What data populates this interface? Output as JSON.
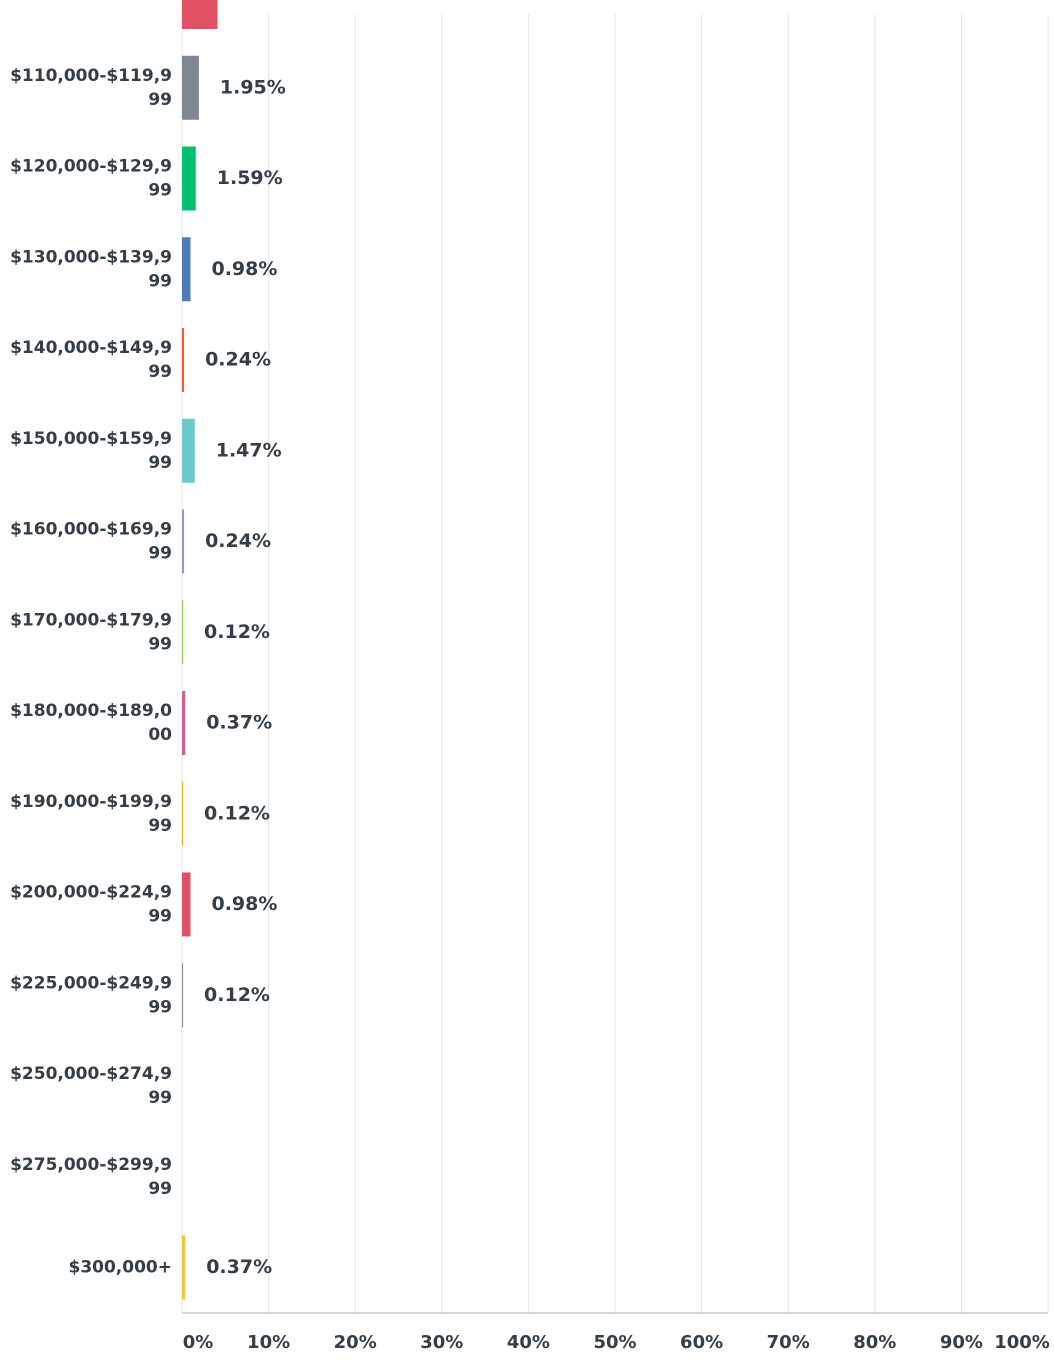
{
  "chart_data": {
    "type": "bar",
    "orientation": "horizontal",
    "categories": [
      null,
      "$110,000-$119,999",
      "$120,000-$129,999",
      "$130,000-$139,999",
      "$140,000-$149,999",
      "$150,000-$159,999",
      "$160,000-$169,999",
      "$170,000-$179,999",
      "$180,000-$189,000",
      "$190,000-$199,999",
      "$200,000-$224,999",
      "$225,000-$249,999",
      "$250,000-$274,999",
      "$275,000-$299,999",
      "$300,000+"
    ],
    "values": [
      4.1,
      1.95,
      1.59,
      0.98,
      0.24,
      1.47,
      0.24,
      0.12,
      0.37,
      0.12,
      0.98,
      0.12,
      0,
      0,
      0.37
    ],
    "value_labels": [
      null,
      "1.95%",
      "1.59%",
      "0.98%",
      "0.24%",
      "1.47%",
      "0.24%",
      "0.12%",
      "0.37%",
      "0.12%",
      "0.98%",
      "0.12%",
      null,
      null,
      "0.37%"
    ],
    "colors": [
      "#e05263",
      "#7f8790",
      "#00bf6f",
      "#507cb6",
      "#f05b24",
      "#6bc8cd",
      "#a18fcc",
      "#95c84a",
      "#d25f90",
      "#f5a623",
      "#e05263",
      "#7f8790",
      "#00bf6f",
      "#507cb6",
      "#f5c342"
    ],
    "xlim": [
      0,
      100
    ],
    "xticks": [
      {
        "value": 0,
        "label": "0%"
      },
      {
        "value": 10,
        "label": "10%"
      },
      {
        "value": 20,
        "label": "20%"
      },
      {
        "value": 30,
        "label": "30%"
      },
      {
        "value": 40,
        "label": "40%"
      },
      {
        "value": 50,
        "label": "50%"
      },
      {
        "value": 60,
        "label": "60%"
      },
      {
        "value": 70,
        "label": "70%"
      },
      {
        "value": 80,
        "label": "80%"
      },
      {
        "value": 90,
        "label": "90%"
      },
      {
        "value": 100,
        "label": "100%"
      }
    ],
    "grid": true
  }
}
